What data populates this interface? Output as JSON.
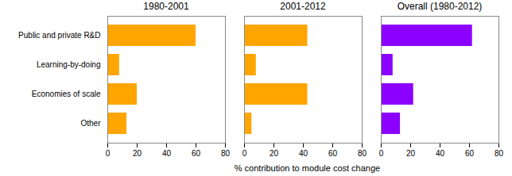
{
  "chart_data": [
    {
      "type": "bar",
      "orientation": "horizontal",
      "title": "1980-2001",
      "categories": [
        "Public and private R&D",
        "Learning-by-doing",
        "Economies of scale",
        "Other"
      ],
      "values": [
        60,
        8,
        20,
        13
      ],
      "color": "#FFA500",
      "xlim": [
        0,
        80
      ],
      "xticks": [
        0,
        20,
        40,
        60,
        80
      ]
    },
    {
      "type": "bar",
      "orientation": "horizontal",
      "title": "2001-2012",
      "xlabel": "% contribution to module cost change",
      "categories": [
        "Public and private R&D",
        "Learning-by-doing",
        "Economies of scale",
        "Other"
      ],
      "values": [
        43,
        8,
        43,
        5
      ],
      "color": "#FFA500",
      "xlim": [
        0,
        80
      ],
      "xticks": [
        0,
        20,
        40,
        60,
        80
      ],
      "tick_labels": "x"
    },
    {
      "type": "bar",
      "orientation": "horizontal",
      "title": "Overall (1980-2012)",
      "categories": [
        "Public and private R&D",
        "Learning-by-doing",
        "Economies of scale",
        "Other"
      ],
      "values": [
        62,
        8,
        22,
        13
      ],
      "color": "#8B00FF",
      "xlim": [
        0,
        80
      ],
      "xticks": [
        0,
        20,
        40,
        60,
        80
      ],
      "tick_labels": "x"
    }
  ]
}
